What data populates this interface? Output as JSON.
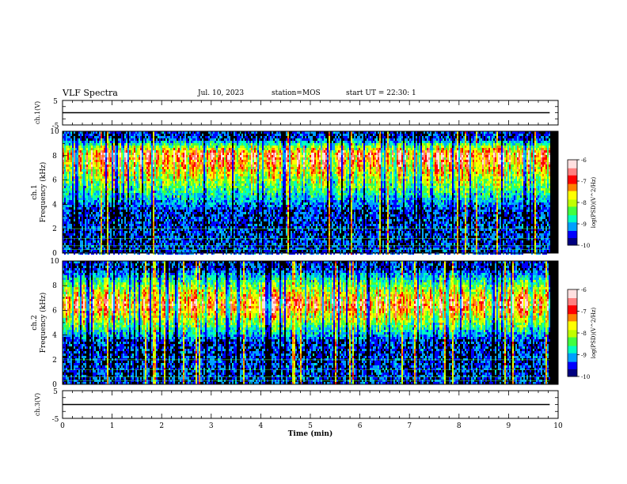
{
  "header": {
    "title": "VLF Spectra",
    "date": "Jul. 10, 2023",
    "station": "station=MOS",
    "start": "start UT = 22:30: 1"
  },
  "colors": {
    "colormap": [
      "#000080",
      "#0000ff",
      "#00a0ff",
      "#00ffc0",
      "#40ff40",
      "#c0ff00",
      "#ffff00",
      "#ff8000",
      "#ff0000",
      "#ff8080",
      "#ffe0e0"
    ],
    "background": "#000000"
  },
  "chart_data": [
    {
      "type": "line",
      "panel": "ch1-waveform",
      "ylabel": "ch.1(V)",
      "ylim": [
        -5,
        5
      ],
      "y_ticks": [
        "5",
        "-5"
      ],
      "x": [
        0,
        9.83
      ],
      "values": [
        0,
        0
      ]
    },
    {
      "type": "heatmap",
      "panel": "ch1-spectrogram",
      "ylabel": "ch.1",
      "ylabel2": "Frequency (kHz)",
      "ylim": [
        0,
        10
      ],
      "y_ticks": [
        "0",
        "2",
        "4",
        "6",
        "8",
        "10"
      ],
      "xlim": [
        0,
        10
      ],
      "data_end_min": 9.83,
      "band_khz": [
        3.5,
        9.5
      ],
      "peak_khz": 8.2,
      "colorbar": {
        "label": "log(PSD)(V^2/Hz)",
        "range": [
          -10,
          -6
        ],
        "ticks": [
          "-6",
          "-7",
          "-8",
          "-9",
          "-10"
        ]
      }
    },
    {
      "type": "heatmap",
      "panel": "ch2-spectrogram",
      "ylabel": "ch.2",
      "ylabel2": "Frequency (kHz)",
      "ylim": [
        0,
        10
      ],
      "y_ticks": [
        "0",
        "2",
        "4",
        "6",
        "8",
        "10"
      ],
      "xlim": [
        0,
        10
      ],
      "data_end_min": 9.83,
      "band_khz": [
        3.5,
        9.5
      ],
      "peak_khz": 6.6,
      "colorbar": {
        "label": "log(PSD)(V^2/Hz)",
        "range": [
          -10,
          -6
        ],
        "ticks": [
          "-6",
          "-7",
          "-8",
          "-9",
          "-10"
        ]
      }
    },
    {
      "type": "line",
      "panel": "ch3-waveform",
      "ylabel": "ch.3(V)",
      "ylim": [
        -5,
        5
      ],
      "y_ticks": [
        "5",
        "-5"
      ],
      "x": [
        0,
        9.83
      ],
      "values": [
        0,
        0
      ],
      "xlabel": "Time (min)",
      "x_ticks": [
        "0",
        "1",
        "2",
        "3",
        "4",
        "5",
        "6",
        "7",
        "8",
        "9",
        "10"
      ]
    }
  ]
}
